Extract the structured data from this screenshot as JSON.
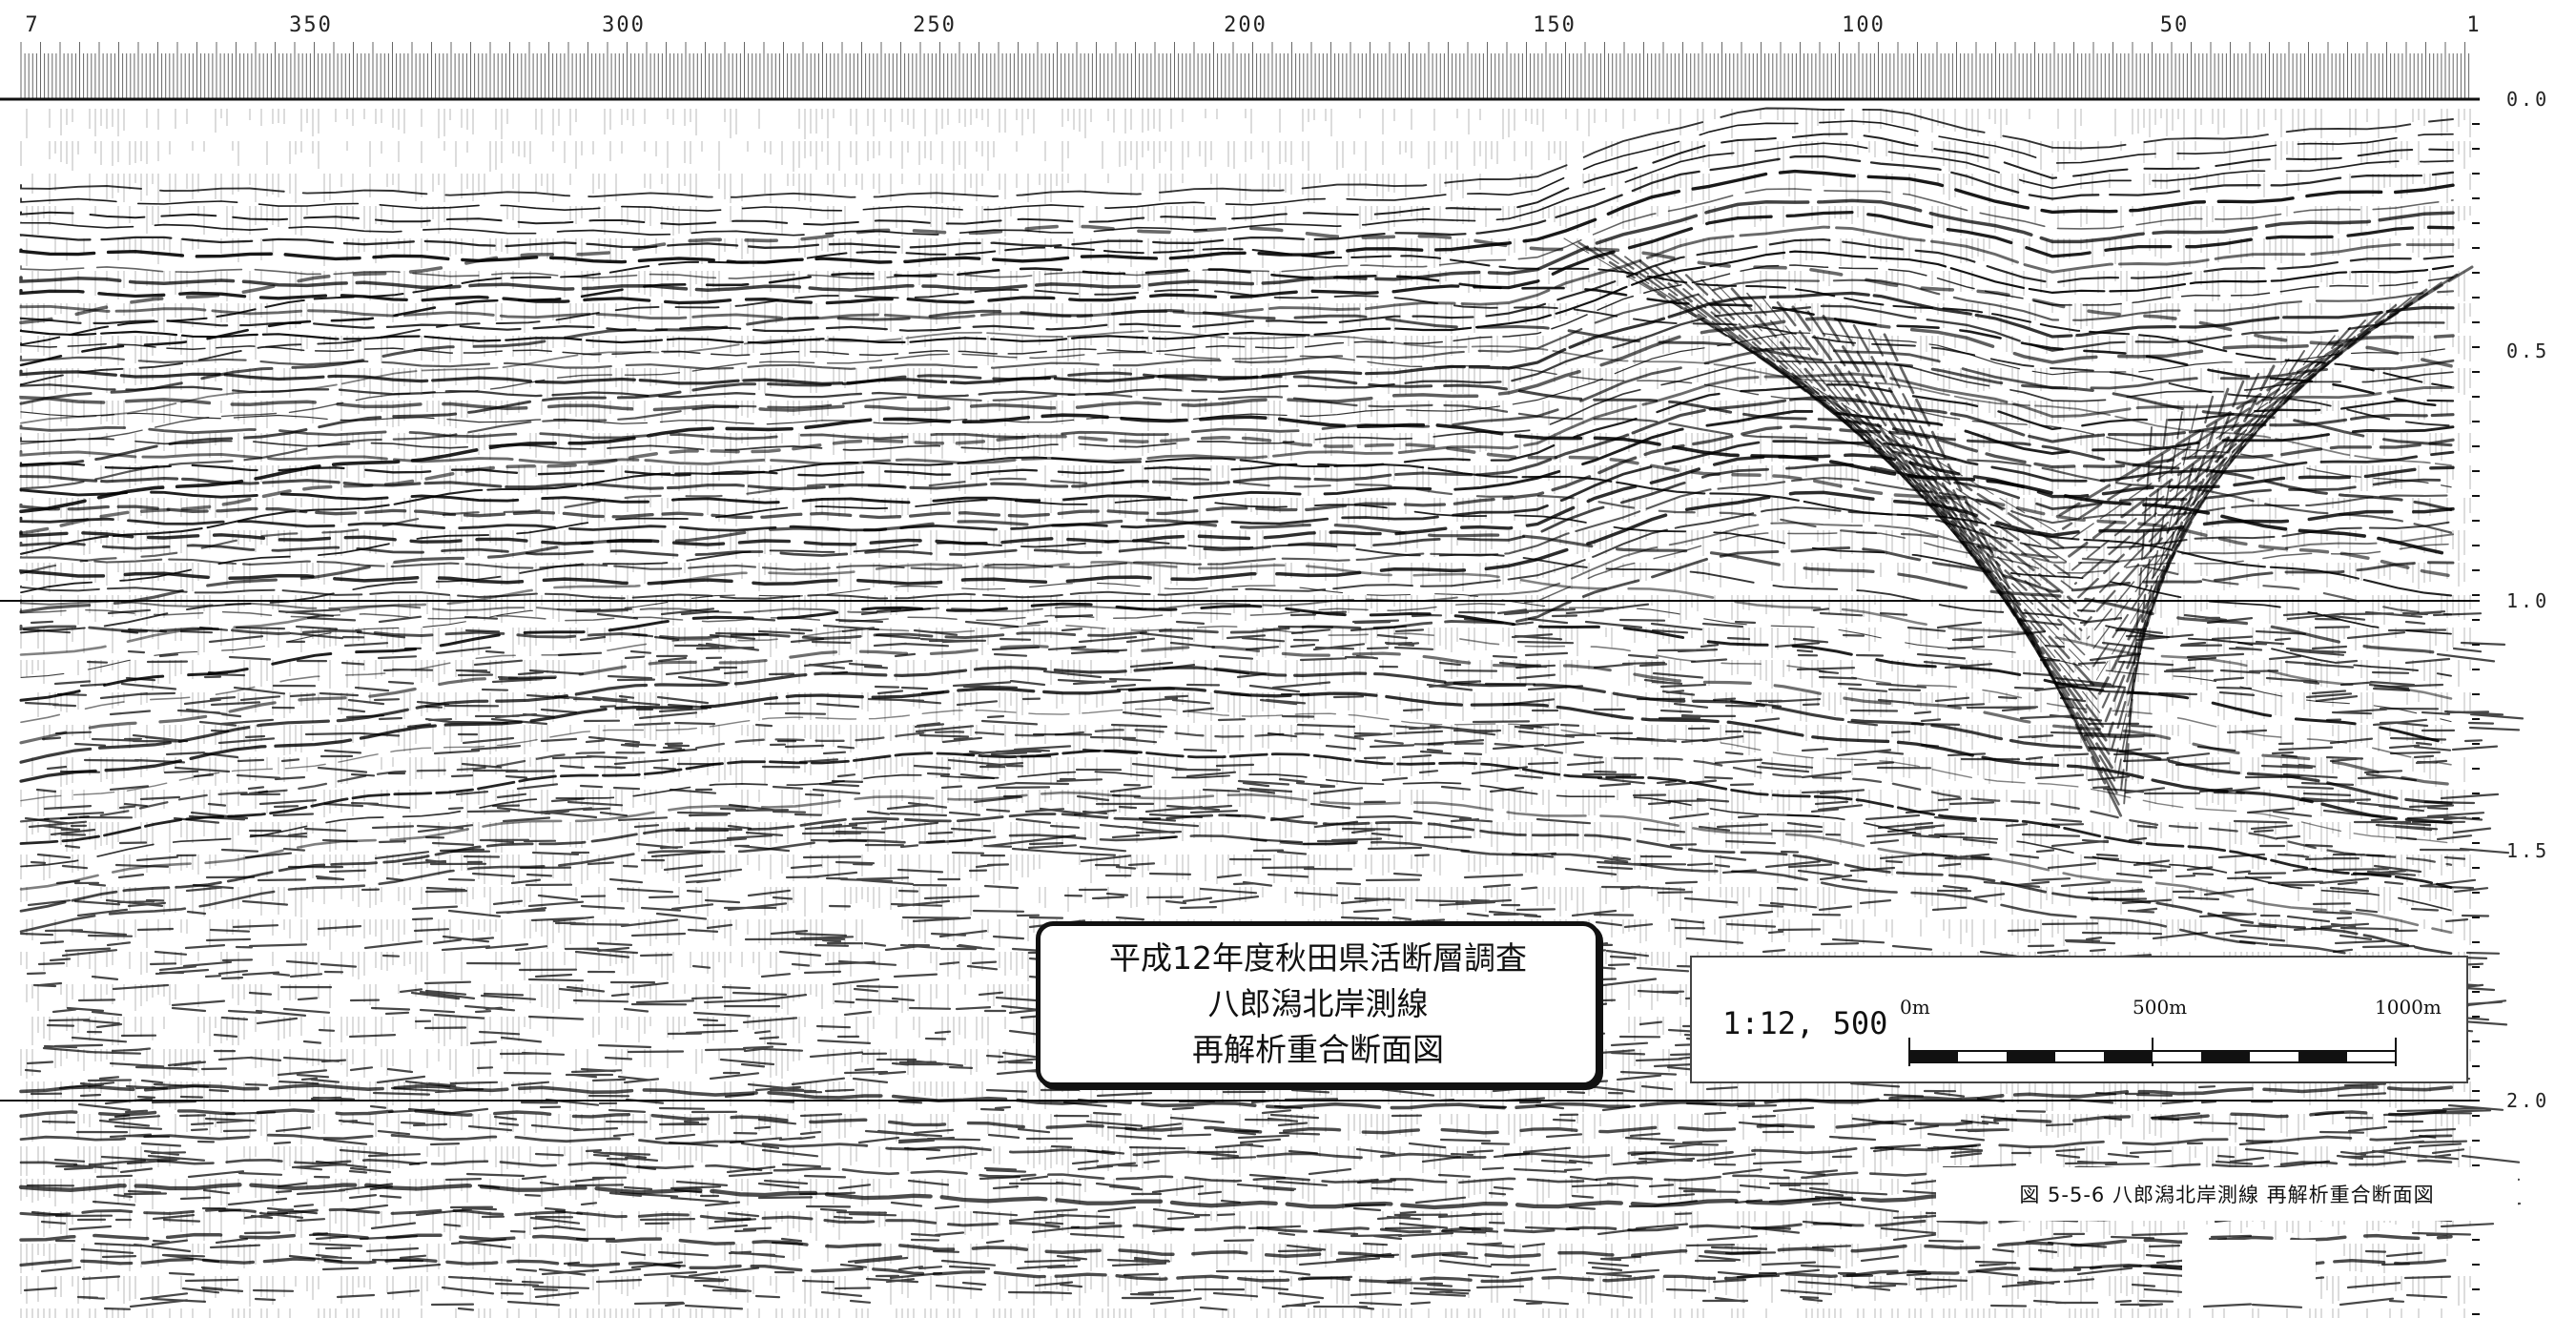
{
  "section": {
    "trace_axis_labels": [
      "7",
      "350",
      "300",
      "250",
      "200",
      "150",
      "100",
      "50",
      "1"
    ],
    "time_axis_labels": [
      "0.0",
      "0.5",
      "1.0",
      "1.5",
      "2.0"
    ]
  },
  "title_box": {
    "line1": "平成12年度秋田県活断層調査",
    "line2": "八郎潟北岸測線",
    "line3": "再解析重合断面図"
  },
  "scale_box": {
    "ratio": "1:12, 500",
    "label_start": "0m",
    "label_mid": "500m",
    "label_end": "1000m"
  },
  "caption": "図 5-5-6 八郎潟北岸測線 再解析重合断面図"
}
